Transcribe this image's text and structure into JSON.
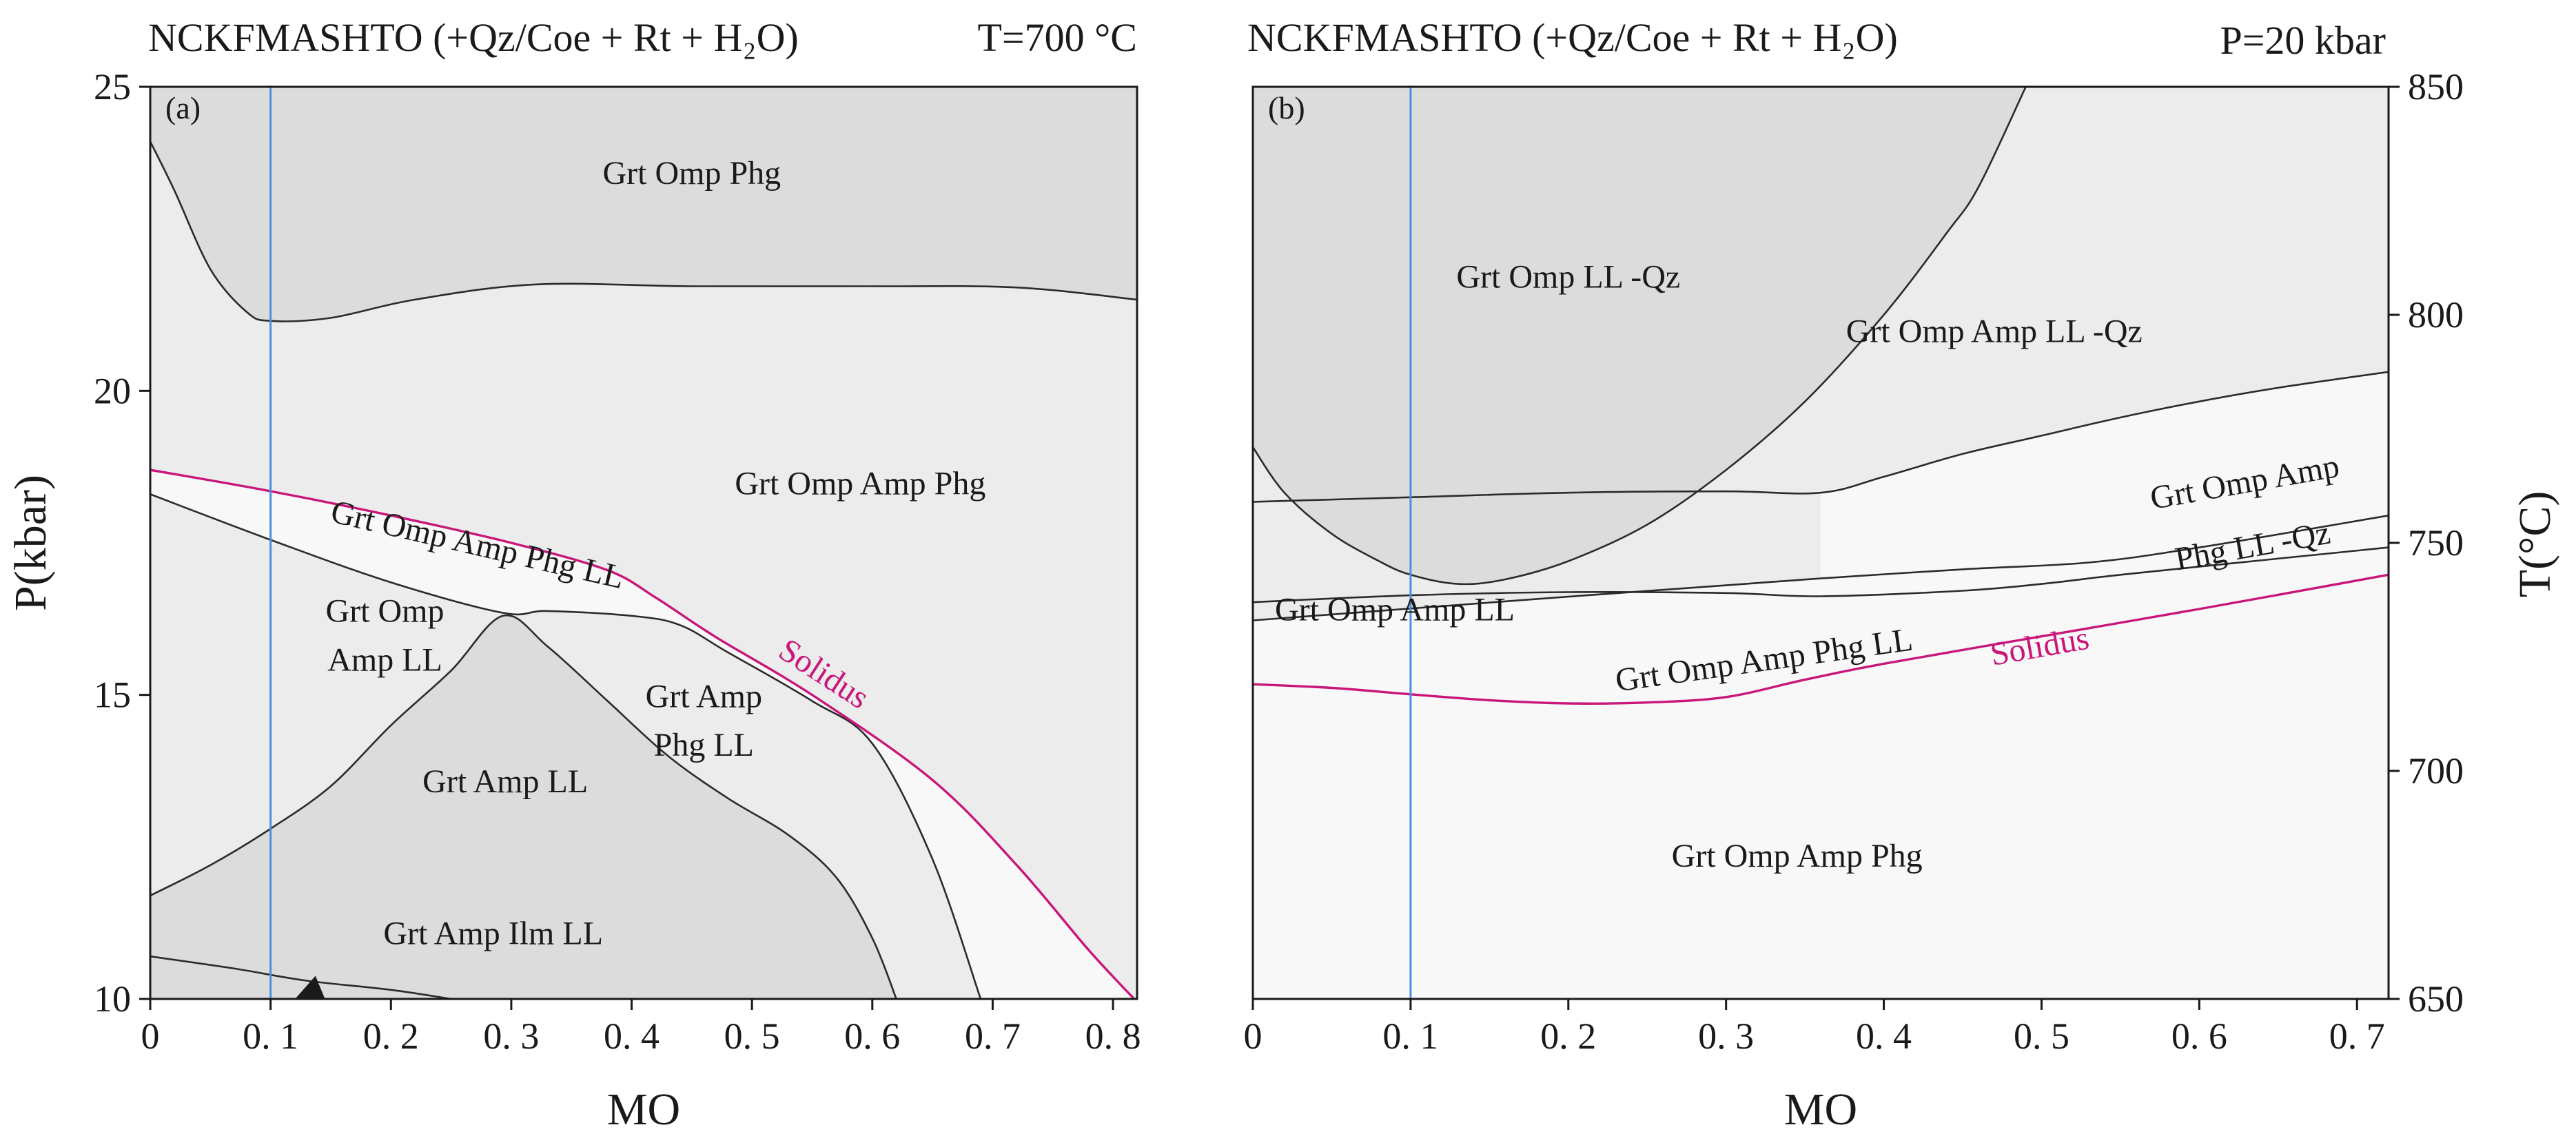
{
  "colors": {
    "dark_field": "#dcdcdc",
    "mid_field": "#ececec",
    "light_field": "#f8f8f8",
    "solidus": "#c8167a",
    "marker": "#4a90e2",
    "line": "#2b2b2b"
  },
  "chart_data": [
    {
      "type": "phase-diagram",
      "panel": "(a)",
      "title": "NCKFMASHTO (+Qz/Coe + Rt + H₂O)",
      "condition": "T=700 °C",
      "xlabel": "MO",
      "ylabel": "P(kbar)",
      "xlim": [
        0,
        0.82
      ],
      "ylim": [
        10,
        25
      ],
      "xticks": [
        0,
        0.1,
        0.2,
        0.3,
        0.4,
        0.5,
        0.6,
        0.7,
        0.8
      ],
      "xtick_labels": [
        "0",
        "0. 1",
        "0. 2",
        "0. 3",
        "0. 4",
        "0. 5",
        "0. 6",
        "0. 7",
        "0. 8"
      ],
      "yticks": [
        10,
        15,
        20,
        25
      ],
      "ytick_labels": [
        "10",
        "15",
        "20",
        "25"
      ],
      "marker_line_x": 0.1,
      "fields": [
        {
          "label": "Grt Omp Phg",
          "x": 0.45,
          "y": 23.4,
          "shade": "dark"
        },
        {
          "label": "Grt Omp Amp Phg",
          "x": 0.59,
          "y": 18.3,
          "shade": "mid"
        },
        {
          "label": "Grt Omp Amp Phg LL",
          "x": 0.27,
          "y": 17.3,
          "shade": "light",
          "rotate": 13
        },
        {
          "label": "Grt Omp",
          "x": 0.195,
          "y": 16.2,
          "shade": "mid"
        },
        {
          "label": "Amp LL",
          "x": 0.195,
          "y": 15.4,
          "shade": "mid"
        },
        {
          "label": "Grt Amp",
          "x": 0.46,
          "y": 14.8,
          "shade": "mid"
        },
        {
          "label": "Phg LL",
          "x": 0.46,
          "y": 14.0,
          "shade": "mid"
        },
        {
          "label": "Grt Amp LL",
          "x": 0.295,
          "y": 13.4,
          "shade": "dark"
        },
        {
          "label": "Grt Amp Ilm LL",
          "x": 0.285,
          "y": 10.9,
          "shade": "dark"
        }
      ],
      "boundaries": [
        {
          "name": "upper-dark",
          "points": [
            [
              0,
              24.1
            ],
            [
              0.02,
              23.3
            ],
            [
              0.05,
              22.0
            ],
            [
              0.08,
              21.3
            ],
            [
              0.1,
              21.15
            ],
            [
              0.15,
              21.2
            ],
            [
              0.22,
              21.5
            ],
            [
              0.32,
              21.75
            ],
            [
              0.45,
              21.72
            ],
            [
              0.6,
              21.72
            ],
            [
              0.72,
              21.7
            ],
            [
              0.82,
              21.5
            ]
          ]
        },
        {
          "name": "solidus",
          "points": [
            [
              0,
              18.7
            ],
            [
              0.1,
              18.35
            ],
            [
              0.2,
              17.95
            ],
            [
              0.3,
              17.5
            ],
            [
              0.38,
              17.05
            ],
            [
              0.42,
              16.6
            ],
            [
              0.47,
              15.95
            ],
            [
              0.55,
              15.0
            ],
            [
              0.65,
              13.6
            ],
            [
              0.72,
              12.2
            ],
            [
              0.78,
              10.8
            ],
            [
              0.82,
              9.95
            ]
          ]
        },
        {
          "name": "LL-in",
          "points": [
            [
              0,
              18.3
            ],
            [
              0.1,
              17.55
            ],
            [
              0.2,
              16.85
            ],
            [
              0.293,
              16.35
            ],
            [
              0.33,
              16.38
            ],
            [
              0.4,
              16.3
            ],
            [
              0.44,
              16.15
            ],
            [
              0.48,
              15.7
            ],
            [
              0.55,
              14.9
            ],
            [
              0.6,
              14.2
            ],
            [
              0.65,
              12.3
            ],
            [
              0.69,
              10.0
            ]
          ]
        },
        {
          "name": "dark-lens",
          "points": [
            [
              0,
              11.7
            ],
            [
              0.05,
              12.2
            ],
            [
              0.1,
              12.8
            ],
            [
              0.15,
              13.5
            ],
            [
              0.2,
              14.5
            ],
            [
              0.25,
              15.4
            ],
            [
              0.293,
              16.3
            ],
            [
              0.33,
              15.8
            ],
            [
              0.38,
              14.9
            ],
            [
              0.43,
              14.0
            ],
            [
              0.48,
              13.3
            ],
            [
              0.53,
              12.7
            ],
            [
              0.57,
              12.0
            ],
            [
              0.6,
              11.0
            ],
            [
              0.62,
              10.0
            ]
          ]
        },
        {
          "name": "ilmenite",
          "points": [
            [
              0,
              10.7
            ],
            [
              0.07,
              10.5
            ],
            [
              0.13,
              10.3
            ],
            [
              0.2,
              10.15
            ],
            [
              0.25,
              10.0
            ]
          ]
        }
      ],
      "solidus_label": {
        "text": "Solidus",
        "x": 0.555,
        "y": 15.2,
        "rotate": 33
      }
    },
    {
      "type": "phase-diagram",
      "panel": "(b)",
      "title": "NCKFMASHTO (+Qz/Coe + Rt + H₂O)",
      "condition": "P=20 kbar",
      "xlabel": "MO",
      "ylabel": "T(°C)",
      "xlim": [
        0,
        0.72
      ],
      "ylim": [
        650,
        850
      ],
      "xticks": [
        0,
        0.1,
        0.2,
        0.3,
        0.4,
        0.5,
        0.6,
        0.7
      ],
      "xtick_labels": [
        "0",
        "0. 1",
        "0. 2",
        "0. 3",
        "0. 4",
        "0. 5",
        "0. 6",
        "0. 7"
      ],
      "yticks": [
        650,
        700,
        750,
        800,
        850
      ],
      "ytick_labels": [
        "650",
        "700",
        "750",
        "800",
        "850"
      ],
      "marker_line_x": 0.1,
      "fields": [
        {
          "label": "Grt Omp LL -Qz",
          "x": 0.2,
          "y": 806,
          "shade": "dark"
        },
        {
          "label": "Grt Omp Amp LL -Qz",
          "x": 0.47,
          "y": 794,
          "shade": "mid"
        },
        {
          "label": "Grt Omp Amp",
          "x": 0.63,
          "y": 761,
          "shade": "light",
          "rotate": -10
        },
        {
          "label": "Phg LL -Qz",
          "x": 0.635,
          "y": 747,
          "shade": "light",
          "rotate": -10
        },
        {
          "label": "Grt Omp Amp LL",
          "x": 0.09,
          "y": 733,
          "shade": "mid"
        },
        {
          "label": "Grt Omp Amp Phg LL",
          "x": 0.325,
          "y": 722,
          "shade": "light",
          "rotate": -8
        },
        {
          "label": "Grt Omp Amp Phg",
          "x": 0.345,
          "y": 679,
          "shade": "mid"
        }
      ],
      "boundaries": [
        {
          "name": "qz-out",
          "points": [
            [
              0,
              771
            ],
            [
              0.02,
              761
            ],
            [
              0.05,
              752
            ],
            [
              0.08,
              746
            ],
            [
              0.1,
              743
            ],
            [
              0.13,
              741
            ],
            [
              0.16,
              742
            ],
            [
              0.2,
              746
            ],
            [
              0.25,
              754
            ],
            [
              0.3,
              766
            ],
            [
              0.35,
              781
            ],
            [
              0.4,
              800
            ],
            [
              0.44,
              818
            ],
            [
              0.46,
              828
            ],
            [
              0.49,
              850
            ]
          ]
        },
        {
          "name": "amp-out",
          "points": [
            [
              0,
              737
            ],
            [
              0.1,
              738.5
            ],
            [
              0.2,
              739.2
            ],
            [
              0.3,
              739
            ],
            [
              0.36,
              738.3
            ],
            [
              0.45,
              739.5
            ],
            [
              0.5,
              741
            ],
            [
              0.55,
              743
            ],
            [
              0.62,
              745.5
            ],
            [
              0.72,
              749
            ]
          ]
        },
        {
          "name": "qz-in",
          "points": [
            [
              0,
              759
            ],
            [
              0.1,
              760
            ],
            [
              0.2,
              761
            ],
            [
              0.3,
              761.3
            ],
            [
              0.36,
              761
            ],
            [
              0.4,
              764.5
            ],
            [
              0.45,
              769.5
            ],
            [
              0.5,
              773.5
            ],
            [
              0.55,
              777.5
            ],
            [
              0.6,
              781
            ],
            [
              0.65,
              784
            ],
            [
              0.72,
              787.5
            ]
          ]
        },
        {
          "name": "phg-in",
          "points": [
            [
              0,
              733
            ],
            [
              0.1,
              735.6
            ],
            [
              0.2,
              738.2
            ],
            [
              0.3,
              740.7
            ],
            [
              0.36,
              742.2
            ],
            [
              0.45,
              744.2
            ],
            [
              0.53,
              745.7
            ],
            [
              0.6,
              749
            ],
            [
              0.72,
              756
            ]
          ]
        },
        {
          "name": "solidus",
          "points": [
            [
              0,
              719
            ],
            [
              0.05,
              718.2
            ],
            [
              0.1,
              716.8
            ],
            [
              0.15,
              715.5
            ],
            [
              0.2,
              714.8
            ],
            [
              0.25,
              715
            ],
            [
              0.3,
              716.2
            ],
            [
              0.35,
              720
            ],
            [
              0.4,
              723.5
            ],
            [
              0.5,
              729.5
            ],
            [
              0.6,
              735.5
            ],
            [
              0.72,
              743
            ]
          ]
        }
      ],
      "solidus_label": {
        "text": "Solidus",
        "x": 0.5,
        "y": 725,
        "rotate": -10
      }
    }
  ]
}
